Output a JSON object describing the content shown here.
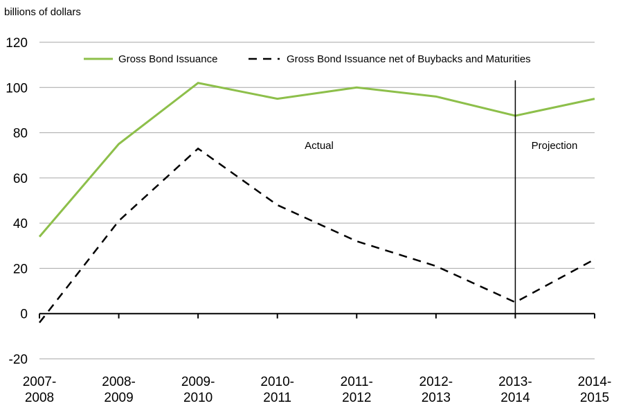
{
  "chart_data": {
    "type": "line",
    "title": "",
    "ylabel": "billions of dollars",
    "xlabel": "",
    "ylim": [
      -20,
      120
    ],
    "yticks": [
      -20,
      0,
      20,
      40,
      60,
      80,
      100,
      120
    ],
    "grid": true,
    "legend_position": "top",
    "categories": [
      [
        "2007-",
        "2008"
      ],
      [
        "2008-",
        "2009"
      ],
      [
        "2009-",
        "2010"
      ],
      [
        "2010-",
        "2011"
      ],
      [
        "2011-",
        "2012"
      ],
      [
        "2012-",
        "2013"
      ],
      [
        "2013-",
        "2014"
      ],
      [
        "2014-",
        "2015"
      ]
    ],
    "series": [
      {
        "name": "Gross Bond Issuance",
        "style": "solid",
        "color": "#8dbf4a",
        "values": [
          34,
          75,
          102,
          95,
          100,
          96,
          87.5,
          95
        ]
      },
      {
        "name": "Gross Bond Issuance net of Buybacks and Maturities",
        "style": "dashed",
        "color": "#000000",
        "values": [
          -4,
          41,
          73,
          48,
          32,
          21,
          5,
          24
        ]
      }
    ],
    "divider_category_index": 6,
    "annotations": [
      "Actual",
      "Projection"
    ]
  }
}
